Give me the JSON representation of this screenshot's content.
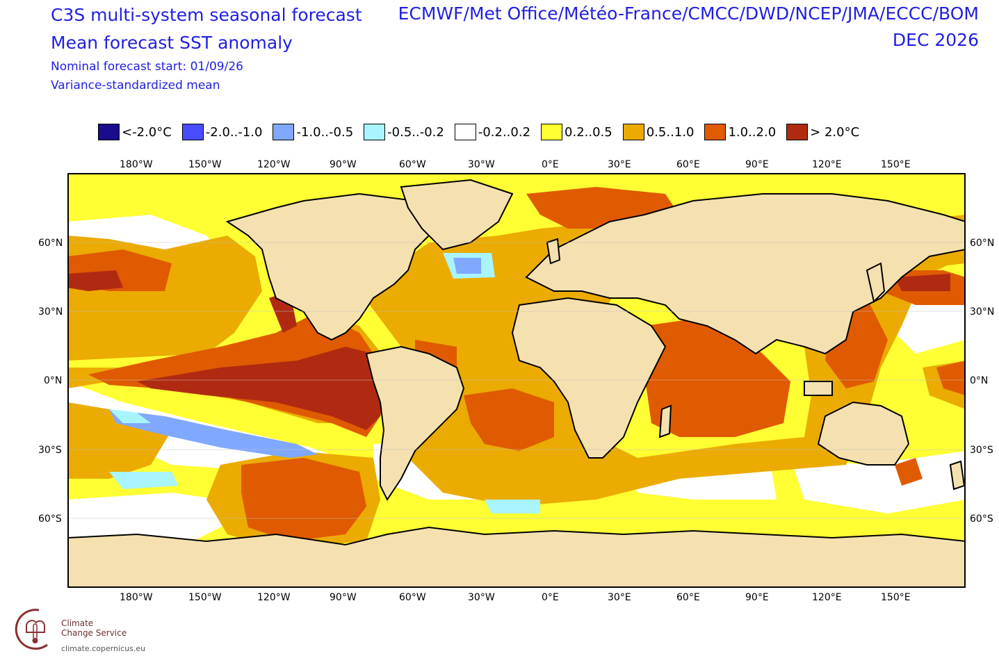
{
  "header": {
    "title_line1": "C3S multi-system seasonal forecast",
    "title_line2": "Mean forecast SST anomaly",
    "subtitle_line1": "Nominal forecast start: 01/09/26",
    "subtitle_line2": "Variance-standardized mean",
    "centres": "ECMWF/Met Office/Météo-France/CMCC/DWD/NCEP/JMA/ECCC/BOM",
    "valid_month": "DEC 2026"
  },
  "legend": {
    "items": [
      {
        "label": "<-2.0°C",
        "color": "#1a0a8c"
      },
      {
        "label": "-2.0..-1.0",
        "color": "#4a4aff"
      },
      {
        "label": "-1.0..-0.5",
        "color": "#80a8ff"
      },
      {
        "label": "-0.5..-0.2",
        "color": "#a8f4ff"
      },
      {
        "label": "-0.2..0.2",
        "color": "#ffffff"
      },
      {
        "label": "0.2..0.5",
        "color": "#ffff33"
      },
      {
        "label": "0.5..1.0",
        "color": "#ebab00"
      },
      {
        "label": "1.0..2.0",
        "color": "#e05a00"
      },
      {
        "label": "> 2.0°C",
        "color": "#b02a12"
      }
    ]
  },
  "axes": {
    "lon_labels": [
      "180°W",
      "150°W",
      "120°W",
      "90°W",
      "60°W",
      "30°W",
      "0°E",
      "30°E",
      "60°E",
      "90°E",
      "120°E",
      "150°E"
    ],
    "lat_labels_left": [
      "60°N",
      "30°N",
      "0°N",
      "30°S",
      "60°S"
    ],
    "lat_labels_right": [
      "60°N",
      "30°N",
      "0°N",
      "30°S",
      "60°S"
    ]
  },
  "colors": {
    "land": "#f5e1b0",
    "title": "#1f1fe0",
    "frame": "#000000"
  },
  "logo": {
    "line1": "Climate",
    "line2": "Change Service",
    "url": "climate.copernicus.eu"
  }
}
